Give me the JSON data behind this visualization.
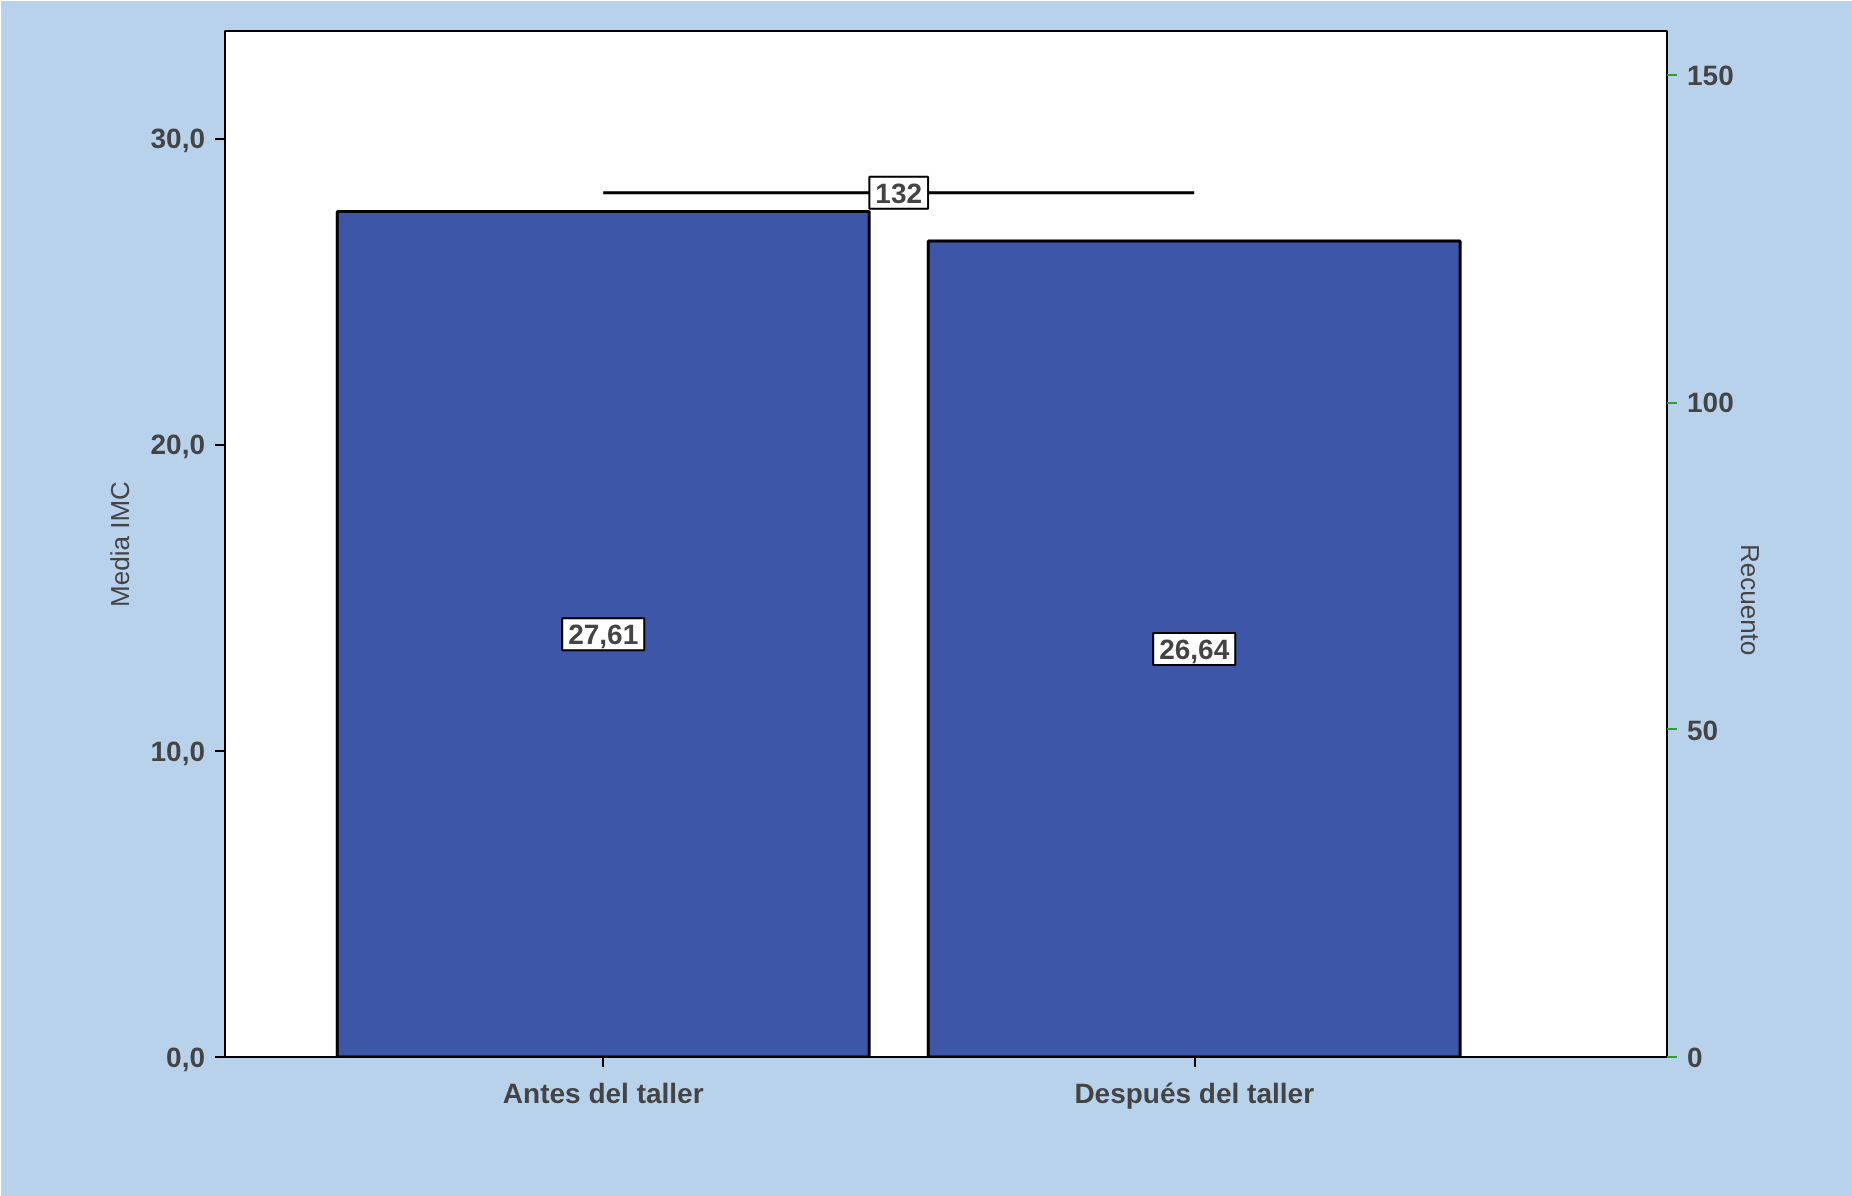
{
  "chart_data": {
    "type": "bar",
    "ylabel": "Media IMC",
    "y2label": "Recuento",
    "categories": [
      "Antes del taller",
      "Después del taller"
    ],
    "series": [
      {
        "color": "#3d56a8",
        "values": [
          27.61,
          26.64
        ],
        "value_labels": [
          "27,61",
          "26,64"
        ]
      },
      {
        "type": "line",
        "axis": "y2",
        "color": "#000000",
        "values": [
          132,
          132
        ]
      }
    ],
    "annotations": [
      "132"
    ],
    "ylim": [
      0,
      33.5
    ],
    "yticks": [
      {
        "value": 0,
        "label": "0,0"
      },
      {
        "value": 10,
        "label": "10,0"
      },
      {
        "value": 20,
        "label": "20,0"
      },
      {
        "value": 30,
        "label": "30,0"
      }
    ],
    "y2lim": [
      0,
      156.7
    ],
    "y2ticks": [
      0,
      50,
      100,
      150
    ],
    "grid": false
  }
}
